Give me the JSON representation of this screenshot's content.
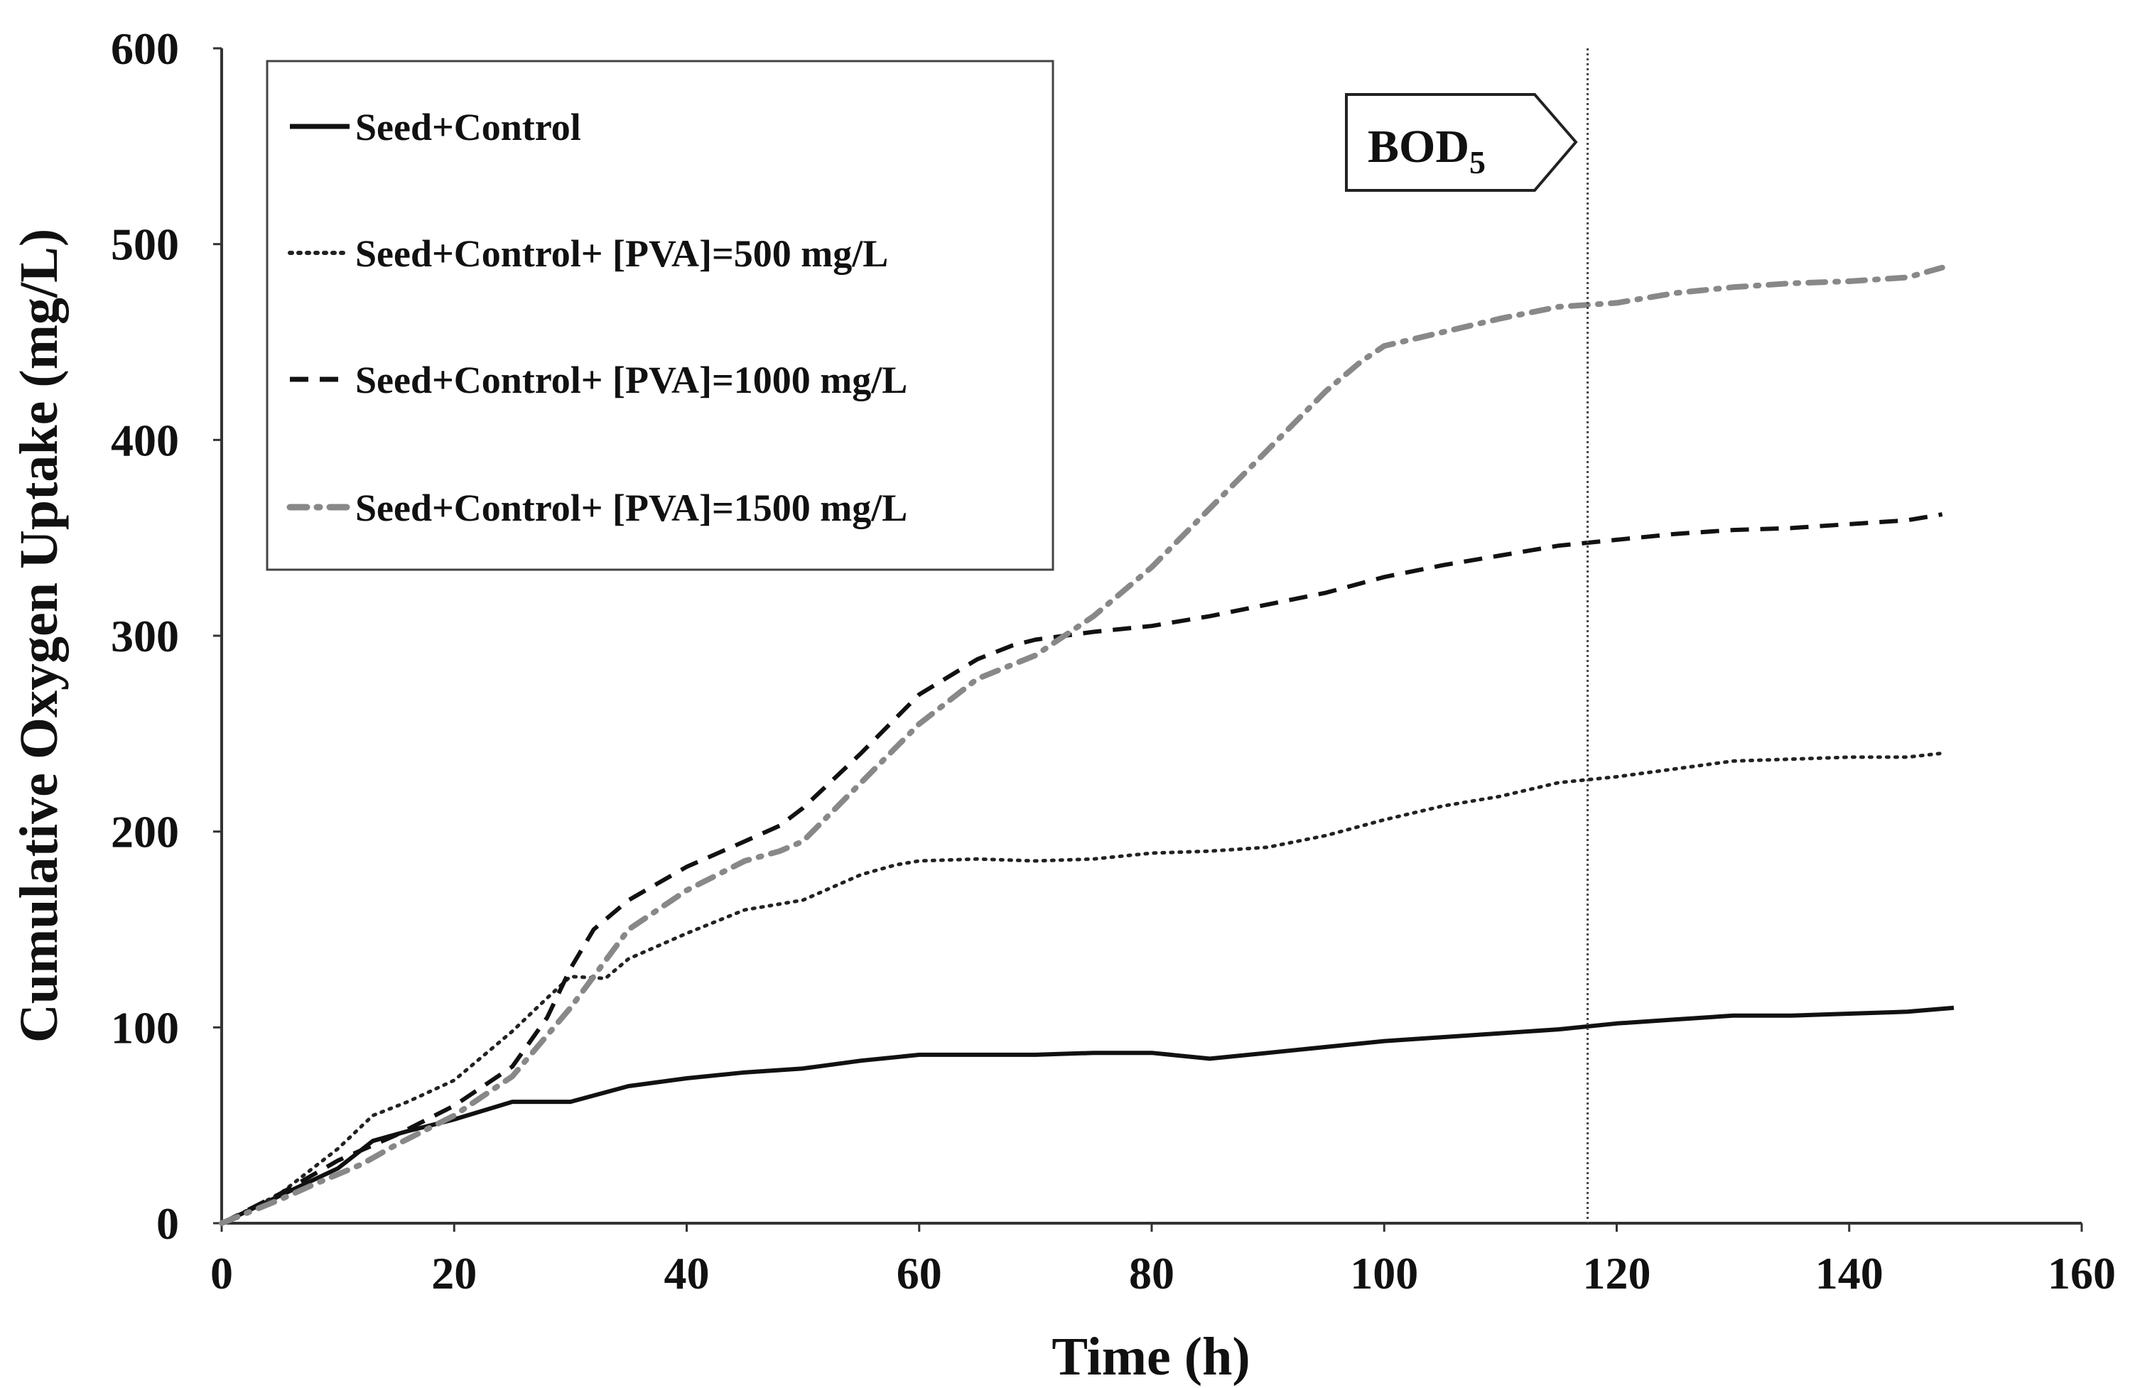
{
  "chart_data": {
    "type": "line",
    "title": "",
    "xlabel": "Time (h)",
    "ylabel": "Cumulative Oxygen Uptake (mg/L)",
    "xlim": [
      0,
      160
    ],
    "ylim": [
      0,
      600
    ],
    "xticks": [
      0,
      20,
      40,
      60,
      80,
      100,
      120,
      140,
      160
    ],
    "yticks": [
      0,
      100,
      200,
      300,
      400,
      500,
      600
    ],
    "grid": false,
    "legend_position": "top-left",
    "annotation": {
      "label": "BOD",
      "subscript": "5",
      "x": 117.5
    },
    "series": [
      {
        "name": "Seed+Control",
        "style": "solid",
        "color": "#111111",
        "x": [
          0,
          5,
          10,
          13,
          16,
          20,
          25,
          30,
          35,
          40,
          45,
          50,
          55,
          60,
          65,
          70,
          75,
          80,
          85,
          90,
          95,
          100,
          105,
          110,
          115,
          120,
          125,
          130,
          135,
          140,
          145,
          149
        ],
        "y": [
          0,
          14,
          28,
          42,
          47,
          53,
          62,
          62,
          70,
          74,
          77,
          79,
          83,
          86,
          86,
          86,
          87,
          87,
          84,
          87,
          90,
          93,
          95,
          97,
          99,
          102,
          104,
          106,
          106,
          107,
          108,
          110
        ]
      },
      {
        "name": "Seed+Control+ [PVA]=500 mg/L",
        "style": "dotted",
        "color": "#222222",
        "x": [
          0,
          5,
          10,
          13,
          16,
          20,
          25,
          28,
          30,
          33,
          35,
          40,
          45,
          50,
          55,
          58,
          60,
          65,
          70,
          75,
          80,
          85,
          90,
          95,
          100,
          105,
          110,
          115,
          120,
          125,
          130,
          135,
          140,
          145,
          148
        ],
        "y": [
          0,
          15,
          38,
          55,
          62,
          73,
          98,
          115,
          126,
          125,
          135,
          148,
          160,
          165,
          178,
          183,
          185,
          186,
          185,
          186,
          189,
          190,
          192,
          198,
          206,
          213,
          218,
          225,
          228,
          232,
          236,
          237,
          238,
          238,
          240
        ]
      },
      {
        "name": "Seed+Control+ [PVA]=1000 mg/L",
        "style": "dashed",
        "color": "#111111",
        "x": [
          0,
          5,
          10,
          15,
          20,
          25,
          28,
          30,
          32,
          35,
          40,
          45,
          48,
          50,
          55,
          60,
          65,
          68,
          70,
          75,
          80,
          85,
          90,
          95,
          100,
          105,
          110,
          115,
          120,
          125,
          130,
          135,
          140,
          145,
          148
        ],
        "y": [
          0,
          15,
          32,
          45,
          60,
          80,
          105,
          130,
          150,
          165,
          182,
          195,
          203,
          212,
          240,
          270,
          288,
          295,
          298,
          302,
          305,
          310,
          316,
          322,
          330,
          336,
          341,
          346,
          349,
          352,
          354,
          355,
          357,
          359,
          362
        ]
      },
      {
        "name": "Seed+Control+ [PVA]=1500 mg/L",
        "style": "dash-dot",
        "color": "#888888",
        "x": [
          0,
          5,
          8,
          12,
          15,
          20,
          25,
          30,
          35,
          40,
          45,
          48,
          50,
          55,
          60,
          65,
          70,
          75,
          80,
          85,
          90,
          95,
          98,
          100,
          105,
          110,
          115,
          120,
          125,
          130,
          135,
          140,
          145,
          148
        ],
        "y": [
          0,
          12,
          20,
          30,
          40,
          55,
          75,
          110,
          150,
          170,
          185,
          190,
          195,
          225,
          255,
          278,
          290,
          310,
          335,
          365,
          395,
          425,
          440,
          448,
          455,
          462,
          468,
          470,
          475,
          478,
          480,
          481,
          483,
          488
        ]
      }
    ]
  }
}
